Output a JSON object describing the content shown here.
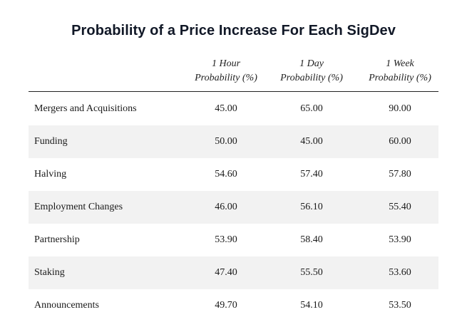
{
  "chart_data": {
    "type": "table",
    "title": "Probability of a Price Increase For Each SigDev",
    "columns": [
      {
        "line1": "1 Hour",
        "line2": "Probability (%)"
      },
      {
        "line1": "1 Day",
        "line2": "Probability (%)"
      },
      {
        "line1": "1 Week",
        "line2": "Probability (%)"
      }
    ],
    "rows": [
      {
        "label": "Mergers and Acquisitions",
        "values": [
          "45.00",
          "65.00",
          "90.00"
        ]
      },
      {
        "label": "Funding",
        "values": [
          "50.00",
          "45.00",
          "60.00"
        ]
      },
      {
        "label": "Halving",
        "values": [
          "54.60",
          "57.40",
          "57.80"
        ]
      },
      {
        "label": "Employment Changes",
        "values": [
          "46.00",
          "56.10",
          "55.40"
        ]
      },
      {
        "label": "Partnership",
        "values": [
          "53.90",
          "58.40",
          "53.90"
        ]
      },
      {
        "label": "Staking",
        "values": [
          "47.40",
          "55.50",
          "53.60"
        ]
      },
      {
        "label": "Announcements",
        "values": [
          "49.70",
          "54.10",
          "53.50"
        ]
      }
    ],
    "colors": {
      "stripe": "#f2f2f2",
      "rule": "#222222",
      "title": "#111827"
    }
  }
}
